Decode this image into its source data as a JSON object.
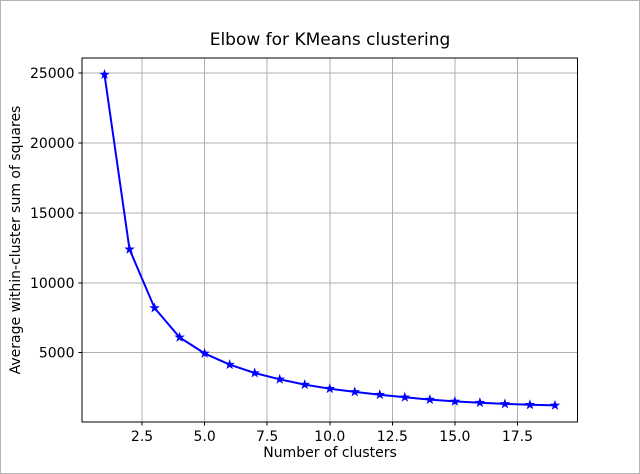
{
  "figure": {
    "background": "#ffffff",
    "border_color": "#b4b4b4"
  },
  "chart_data": {
    "type": "line",
    "title": "Elbow for KMeans clustering",
    "xlabel": "Number of clusters",
    "ylabel": "Average within-cluster sum of squares",
    "x": [
      1,
      2,
      3,
      4,
      5,
      6,
      7,
      8,
      9,
      10,
      11,
      12,
      13,
      14,
      15,
      16,
      17,
      18,
      19
    ],
    "y": [
      24900,
      12400,
      8200,
      6100,
      4950,
      4150,
      3550,
      3100,
      2720,
      2430,
      2200,
      2000,
      1810,
      1650,
      1520,
      1430,
      1340,
      1280,
      1230
    ],
    "xlim": [
      0.1,
      19.9
    ],
    "ylim": [
      46,
      26084
    ],
    "x_ticks": {
      "values": [
        2.5,
        5,
        7.5,
        10,
        12.5,
        15,
        17.5
      ],
      "labels": [
        "2.5",
        "5.0",
        "7.5",
        "10.0",
        "12.5",
        "15.0",
        "17.5"
      ]
    },
    "y_ticks": {
      "values": [
        5000,
        10000,
        15000,
        20000,
        25000
      ],
      "labels": [
        "5000",
        "10000",
        "15000",
        "20000",
        "25000"
      ]
    },
    "grid": true,
    "legend": false,
    "marker": "star",
    "line_color": "#0000ff",
    "marker_color": "#0000ff",
    "grid_color": "#b0b0b0",
    "axis_color": "#000000",
    "text_color": "#000000"
  }
}
